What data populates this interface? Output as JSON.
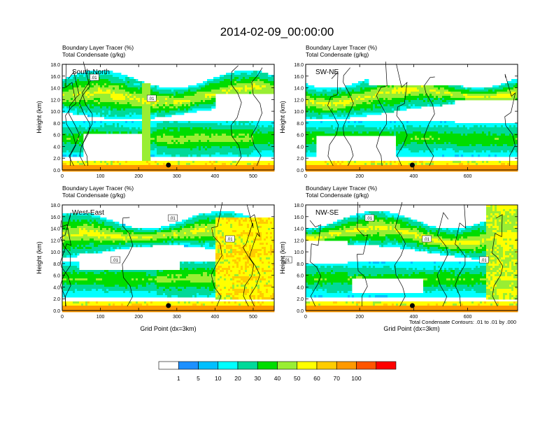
{
  "figure": {
    "title": "2014-02-09_00:00:00",
    "contour_note": "Total Condensate Contours: .01 to .01 by .000"
  },
  "colorbar": {
    "labels": [
      "1",
      "5",
      "10",
      "20",
      "30",
      "40",
      "50",
      "60",
      "70",
      "100"
    ],
    "colors": [
      "#ffffff",
      "#1e90ff",
      "#00bfff",
      "#00ffff",
      "#00d999",
      "#00dd00",
      "#99ee33",
      "#ffff00",
      "#ffcc00",
      "#ff9900",
      "#ff5500",
      "#ff0000"
    ]
  },
  "chart_data": [
    {
      "type": "heatmap",
      "panel_label": "South-North",
      "title": "Boundary Layer Tracer   (%)",
      "subtitle": "Total Condensate   (g/kg)",
      "ylabel": "Height (km)",
      "xlabel": "",
      "xlim": [
        0,
        555
      ],
      "ylim": [
        0,
        18
      ],
      "x_ticks": [
        "0",
        "100",
        "200",
        "300",
        "400",
        "500"
      ],
      "x_tick_values": [
        0,
        100,
        200,
        300,
        400,
        500
      ],
      "y_ticks": [
        "0.0",
        "2.0",
        "4.0",
        "6.0",
        "8.0",
        "10.0",
        "12.0",
        "14.0",
        "16.0",
        "18.0"
      ],
      "marker_x": 278,
      "contour_labels": [
        ".01",
        ".01"
      ]
    },
    {
      "type": "heatmap",
      "panel_label": "SW-NE",
      "title": "Boundary Layer Tracer   (%)",
      "subtitle": "Total Condensate   (g/kg)",
      "ylabel": "Height (km)",
      "xlabel": "",
      "xlim": [
        0,
        785
      ],
      "ylim": [
        0,
        18
      ],
      "x_ticks": [
        "0",
        "200",
        "400",
        "600"
      ],
      "x_tick_values": [
        0,
        200,
        400,
        600
      ],
      "y_ticks": [
        "0.0",
        "2.0",
        "4.0",
        "6.0",
        "8.0",
        "10.0",
        "12.0",
        "14.0",
        "16.0",
        "18.0"
      ],
      "marker_x": 395,
      "contour_labels": []
    },
    {
      "type": "heatmap",
      "panel_label": "West-East",
      "title": "Boundary Layer Tracer   (%)",
      "subtitle": "Total Condensate   (g/kg)",
      "ylabel": "Height (km)",
      "xlabel": "Grid Point (dx=3km)",
      "xlim": [
        0,
        555
      ],
      "ylim": [
        0,
        18
      ],
      "x_ticks": [
        "0",
        "100",
        "200",
        "300",
        "400",
        "500"
      ],
      "x_tick_values": [
        0,
        100,
        200,
        300,
        400,
        500
      ],
      "y_ticks": [
        "0.0",
        "2.0",
        "4.0",
        "6.0",
        "8.0",
        "10.0",
        "12.0",
        "14.0",
        "16.0",
        "18.0"
      ],
      "marker_x": 278,
      "contour_labels": [
        ".01",
        ".01",
        ".01",
        ".01"
      ]
    },
    {
      "type": "heatmap",
      "panel_label": "NW-SE",
      "title": "Boundary Layer Tracer   (%)",
      "subtitle": "Total Condensate   (g/kg)",
      "ylabel": "Height (km)",
      "xlabel": "Grid Point (dx=3km)",
      "xlim": [
        0,
        785
      ],
      "ylim": [
        0,
        18
      ],
      "x_ticks": [
        "0",
        "200",
        "400",
        "600"
      ],
      "x_tick_values": [
        0,
        200,
        400,
        600
      ],
      "y_ticks": [
        "0.0",
        "2.0",
        "4.0",
        "6.0",
        "8.0",
        "10.0",
        "12.0",
        "14.0",
        "16.0",
        "18.0"
      ],
      "marker_x": 395,
      "contour_labels": [
        ".01",
        ".01",
        ".01"
      ]
    }
  ]
}
